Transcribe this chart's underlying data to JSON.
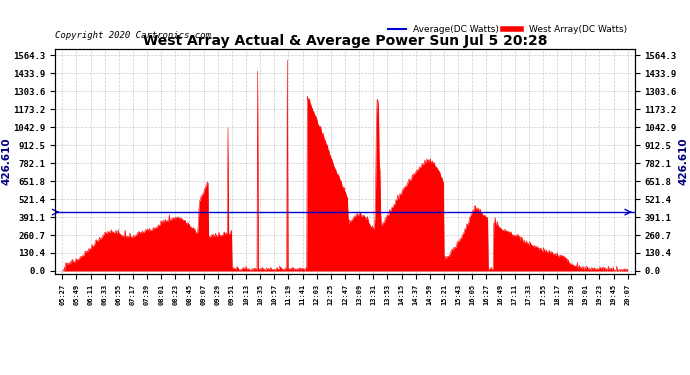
{
  "title": "West Array Actual & Average Power Sun Jul 5 20:28",
  "copyright": "Copyright 2020 Cartronics.com",
  "legend_avg": "Average(DC Watts)",
  "legend_west": "West Array(DC Watts)",
  "avg_value": 426.61,
  "avg_label": "426.610",
  "yticks": [
    0.0,
    130.4,
    260.7,
    391.1,
    521.4,
    651.8,
    782.1,
    912.5,
    1042.9,
    1173.2,
    1303.6,
    1433.9,
    1564.3
  ],
  "ymax": 1564.3,
  "ymin": 0.0,
  "bg_color": "#ffffff",
  "grid_color": "#aaaaaa",
  "fill_color": "#ff0000",
  "line_color": "#ff0000",
  "avg_line_color": "#0000cc",
  "title_color": "#000000",
  "copyright_color": "#000000",
  "legend_avg_color": "#0000cc",
  "legend_west_color": "#ff0000",
  "left_label_color": "#000080",
  "right_label_color": "#000080",
  "xtick_labels": [
    "05:27",
    "05:49",
    "06:11",
    "06:33",
    "06:55",
    "07:17",
    "07:39",
    "08:01",
    "08:23",
    "08:45",
    "09:07",
    "09:29",
    "09:51",
    "10:13",
    "10:35",
    "10:57",
    "11:19",
    "11:41",
    "12:03",
    "12:25",
    "12:47",
    "13:09",
    "13:31",
    "13:53",
    "14:15",
    "14:37",
    "14:59",
    "15:21",
    "15:43",
    "16:05",
    "16:27",
    "16:49",
    "17:11",
    "17:33",
    "17:55",
    "18:17",
    "18:39",
    "19:01",
    "19:23",
    "19:45",
    "20:07"
  ]
}
